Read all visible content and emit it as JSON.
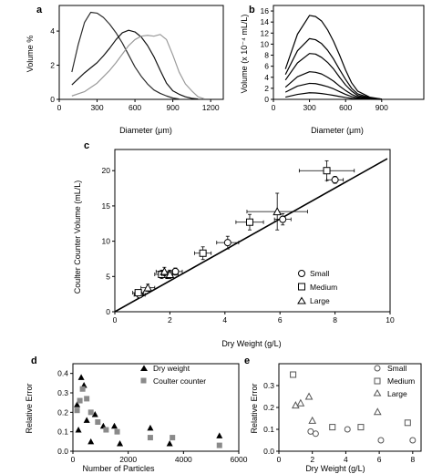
{
  "chart_data": [
    {
      "panel": "a",
      "type": "line",
      "xlabel": "Diameter (μm)",
      "ylabel": "Volume %",
      "xlim": [
        0,
        1300
      ],
      "ylim": [
        0,
        5.5
      ],
      "xticks": [
        "0",
        "300",
        "600",
        "900",
        "1200"
      ],
      "yticks": [
        "0",
        "2",
        "4"
      ],
      "series": [
        {
          "color": "#2b2b2b",
          "x": [
            100,
            150,
            200,
            250,
            300,
            350,
            400,
            450,
            500,
            550,
            600,
            650,
            700,
            750,
            800,
            850,
            900,
            950
          ],
          "y": [
            1.6,
            3.2,
            4.5,
            5.1,
            5.05,
            4.8,
            4.4,
            3.9,
            3.3,
            2.6,
            1.9,
            1.35,
            0.9,
            0.55,
            0.35,
            0.2,
            0.08,
            0.02
          ]
        },
        {
          "color": "#111111",
          "x": [
            100,
            200,
            300,
            350,
            400,
            450,
            500,
            550,
            600,
            650,
            700,
            750,
            800,
            850,
            900,
            950,
            1000,
            1050,
            1100
          ],
          "y": [
            0.85,
            1.55,
            2.15,
            2.55,
            3.0,
            3.5,
            3.9,
            4.05,
            3.95,
            3.65,
            3.15,
            2.5,
            1.7,
            0.95,
            0.5,
            0.3,
            0.15,
            0.06,
            0.02
          ]
        },
        {
          "color": "#9a9a9a",
          "x": [
            100,
            200,
            300,
            400,
            450,
            500,
            550,
            600,
            650,
            700,
            750,
            800,
            850,
            900,
            950,
            1000,
            1050,
            1100,
            1150
          ],
          "y": [
            0.2,
            0.45,
            0.95,
            1.7,
            2.15,
            2.65,
            3.15,
            3.5,
            3.7,
            3.75,
            3.7,
            3.8,
            3.5,
            2.6,
            1.6,
            0.9,
            0.5,
            0.15,
            0.03
          ]
        }
      ]
    },
    {
      "panel": "b",
      "type": "line",
      "xlabel": "Diameter (μm)",
      "ylabel": "Volume (x 10⁻⁴ mL/L)",
      "xlim": [
        0,
        1250
      ],
      "ylim": [
        0,
        17
      ],
      "xticks": [
        "0",
        "300",
        "600",
        "900"
      ],
      "yticks": [
        "0",
        "2",
        "4",
        "6",
        "8",
        "10",
        "12",
        "14",
        "16"
      ],
      "series": [
        {
          "color": "#000",
          "x": [
            100,
            200,
            300,
            350,
            400,
            450,
            500,
            550,
            600,
            650,
            700,
            800,
            900
          ],
          "y": [
            5.5,
            11.8,
            15.2,
            15.0,
            14.2,
            12.6,
            10.5,
            8.0,
            5.3,
            3.0,
            1.5,
            0.4,
            0.05
          ]
        },
        {
          "color": "#000",
          "x": [
            100,
            200,
            300,
            350,
            400,
            450,
            500,
            550,
            600,
            650,
            700,
            800,
            900
          ],
          "y": [
            4.5,
            8.8,
            11.0,
            10.8,
            10.1,
            8.9,
            7.3,
            5.4,
            3.6,
            2.0,
            1.0,
            0.3,
            0.05
          ]
        },
        {
          "color": "#000",
          "x": [
            100,
            200,
            300,
            350,
            400,
            450,
            500,
            550,
            600,
            650,
            700,
            800,
            900
          ],
          "y": [
            3.5,
            6.6,
            8.3,
            8.2,
            7.6,
            6.7,
            5.5,
            4.0,
            2.6,
            1.5,
            0.7,
            0.2,
            0.03
          ]
        },
        {
          "color": "#000",
          "x": [
            100,
            200,
            300,
            350,
            400,
            450,
            500,
            550,
            600,
            650,
            700,
            800,
            900
          ],
          "y": [
            2.2,
            4.1,
            5.0,
            4.9,
            4.6,
            4.0,
            3.3,
            2.4,
            1.6,
            0.9,
            0.45,
            0.12,
            0.02
          ]
        },
        {
          "color": "#000",
          "x": [
            100,
            200,
            300,
            350,
            400,
            450,
            500,
            550,
            600,
            650,
            700,
            800,
            900
          ],
          "y": [
            1.3,
            2.4,
            2.9,
            2.85,
            2.6,
            2.3,
            1.9,
            1.4,
            0.9,
            0.5,
            0.25,
            0.07,
            0.01
          ]
        },
        {
          "color": "#000",
          "x": [
            100,
            200,
            300,
            350,
            400,
            450,
            500,
            550,
            600,
            650,
            700,
            800,
            900
          ],
          "y": [
            0.4,
            0.9,
            1.2,
            1.15,
            1.05,
            0.9,
            0.72,
            0.52,
            0.34,
            0.19,
            0.09,
            0.02,
            0.0
          ]
        }
      ]
    },
    {
      "panel": "c",
      "type": "scatter",
      "xlabel": "Dry Weight (g/L)",
      "ylabel": "Coulter Counter Volume (mL/L)",
      "xlim": [
        0,
        10
      ],
      "ylim": [
        0,
        23
      ],
      "xticks": [
        "0",
        "2",
        "4",
        "6",
        "8",
        "10"
      ],
      "yticks": [
        "0",
        "5",
        "10",
        "15",
        "20"
      ],
      "fit_line": {
        "x": [
          0,
          9.9
        ],
        "y": [
          0,
          21.7
        ]
      },
      "legend": [
        "Small",
        "Medium",
        "Large"
      ],
      "series": [
        {
          "name": "Small",
          "marker": "circle",
          "points": [
            {
              "x": 0.9,
              "y": 2.4,
              "xerr": 0.2,
              "yerr": 0.4
            },
            {
              "x": 1.9,
              "y": 5.2,
              "xerr": 0.2,
              "yerr": 0.5
            },
            {
              "x": 2.2,
              "y": 5.7,
              "xerr": 0.25,
              "yerr": 0.5
            },
            {
              "x": 4.1,
              "y": 9.8,
              "xerr": 0.4,
              "yerr": 0.9
            },
            {
              "x": 6.1,
              "y": 13.1,
              "xerr": 0.3,
              "yerr": 0.8
            },
            {
              "x": 8.0,
              "y": 18.7,
              "xerr": 0.3,
              "yerr": 0.5
            }
          ]
        },
        {
          "name": "Medium",
          "marker": "square",
          "points": [
            {
              "x": 0.85,
              "y": 2.7,
              "xerr": 0.2,
              "yerr": 0.4
            },
            {
              "x": 1.7,
              "y": 5.3,
              "xerr": 0.25,
              "yerr": 0.6
            },
            {
              "x": 3.2,
              "y": 8.3,
              "xerr": 0.3,
              "yerr": 0.9
            },
            {
              "x": 4.9,
              "y": 12.7,
              "xerr": 0.5,
              "yerr": 1.1
            },
            {
              "x": 7.7,
              "y": 20.0,
              "xerr": 1.0,
              "yerr": 1.4
            }
          ]
        },
        {
          "name": "Large",
          "marker": "triangle",
          "points": [
            {
              "x": 1.2,
              "y": 3.4,
              "xerr": 0.25,
              "yerr": 0.5
            },
            {
              "x": 1.8,
              "y": 5.7,
              "xerr": 0.3,
              "yerr": 0.6
            },
            {
              "x": 2.0,
              "y": 5.3,
              "xerr": 0.3,
              "yerr": 0.6
            },
            {
              "x": 5.9,
              "y": 14.2,
              "xerr": 1.1,
              "yerr": 2.6
            }
          ]
        }
      ]
    },
    {
      "panel": "d",
      "type": "scatter",
      "xlabel": "Number of Particles",
      "ylabel": "Relative Error",
      "xlim": [
        0,
        6000
      ],
      "ylim": [
        0,
        0.45
      ],
      "xticks": [
        "0",
        "2000",
        "4000",
        "6000"
      ],
      "yticks": [
        "0.0",
        "0.1",
        "0.2",
        "0.3",
        "0.4"
      ],
      "legend": [
        "Dry weight",
        "Coulter counter"
      ],
      "series": [
        {
          "name": "Dry weight",
          "marker": "triangle",
          "color": "#000000",
          "points": [
            [
              150,
              0.24
            ],
            [
              200,
              0.11
            ],
            [
              300,
              0.38
            ],
            [
              400,
              0.34
            ],
            [
              500,
              0.16
            ],
            [
              650,
              0.05
            ],
            [
              800,
              0.19
            ],
            [
              1100,
              0.13
            ],
            [
              1500,
              0.13
            ],
            [
              1700,
              0.04
            ],
            [
              2800,
              0.12
            ],
            [
              3500,
              0.04
            ],
            [
              5300,
              0.08
            ]
          ]
        },
        {
          "name": "Coulter counter",
          "marker": "square",
          "color": "#8a8a8a",
          "points": [
            [
              150,
              0.21
            ],
            [
              250,
              0.26
            ],
            [
              350,
              0.32
            ],
            [
              500,
              0.27
            ],
            [
              650,
              0.2
            ],
            [
              900,
              0.15
            ],
            [
              1200,
              0.11
            ],
            [
              1600,
              0.1
            ],
            [
              2800,
              0.07
            ],
            [
              3600,
              0.07
            ],
            [
              5300,
              0.03
            ]
          ]
        }
      ]
    },
    {
      "panel": "e",
      "type": "scatter",
      "xlabel": "Dry Weight (g/L)",
      "ylabel": "Relative Error",
      "xlim": [
        0,
        8.5
      ],
      "ylim": [
        0,
        0.4
      ],
      "xticks": [
        "0",
        "2",
        "4",
        "6",
        "8"
      ],
      "yticks": [
        "0.0",
        "0.1",
        "0.2",
        "0.3"
      ],
      "legend": [
        "Small",
        "Medium",
        "Large"
      ],
      "series": [
        {
          "name": "Small",
          "marker": "circle",
          "points": [
            [
              1.9,
              0.09
            ],
            [
              2.2,
              0.08
            ],
            [
              4.1,
              0.1
            ],
            [
              6.1,
              0.05
            ],
            [
              8.0,
              0.05
            ]
          ]
        },
        {
          "name": "Medium",
          "marker": "square",
          "points": [
            [
              0.85,
              0.35
            ],
            [
              3.2,
              0.11
            ],
            [
              4.9,
              0.11
            ],
            [
              7.7,
              0.13
            ]
          ]
        },
        {
          "name": "Large",
          "marker": "triangle",
          "points": [
            [
              1.0,
              0.21
            ],
            [
              1.3,
              0.22
            ],
            [
              1.8,
              0.25
            ],
            [
              2.0,
              0.14
            ],
            [
              5.9,
              0.18
            ]
          ]
        }
      ]
    }
  ],
  "labels": {
    "a": {
      "panel": "a",
      "xlabel": "Diameter (μm)",
      "ylabel": "Volume %"
    },
    "b": {
      "panel": "b",
      "xlabel": "Diameter (μm)",
      "ylabel": "Volume (x 10⁻⁴ mL/L)"
    },
    "c": {
      "panel": "c",
      "xlabel": "Dry Weight (g/L)",
      "ylabel": "Coulter Counter Volume (mL/L)",
      "legend": [
        "Small",
        "Medium",
        "Large"
      ]
    },
    "d": {
      "panel": "d",
      "xlabel": "Number of Particles",
      "ylabel": "Relative Error",
      "legend": [
        "Dry weight",
        "Coulter counter"
      ]
    },
    "e": {
      "panel": "e",
      "xlabel": "Dry Weight (g/L)",
      "ylabel": "Relative Error",
      "legend": [
        "Small",
        "Medium",
        "Large"
      ]
    }
  }
}
